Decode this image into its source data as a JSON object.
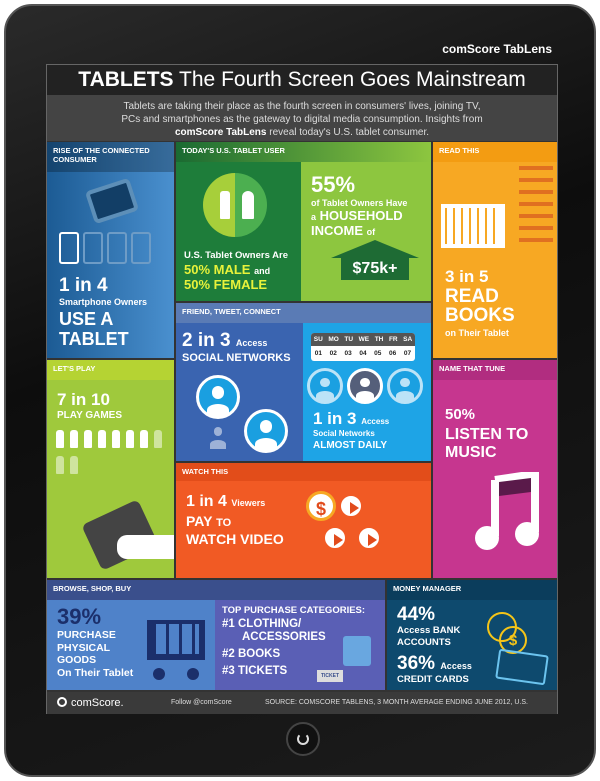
{
  "brand": "comScore TabLens",
  "header": {
    "title_bold": "TABLETS",
    "title_rest": "The Fourth Screen Goes Mainstream",
    "intro_1": "Tablets are taking their place as the fourth screen in consumers' lives, joining TV,",
    "intro_2": "PCs and smartphones as the gateway to digital media consumption. Insights from",
    "intro_brand": "comScore TabLens",
    "intro_3": "reveal today's U.S. tablet consumer."
  },
  "rise": {
    "header": "Rise of the Connected Consumer",
    "stat": "1 in 4",
    "line1": "Smartphone Owners",
    "line2": "USE A",
    "line3": "TABLET"
  },
  "user": {
    "header": "Today's U.S. Tablet User",
    "gender_lead": "U.S. Tablet Owners Are",
    "male": "50% MALE",
    "and": "and",
    "female": "50% FEMALE",
    "income_pct": "55%",
    "income_1": "of Tablet Owners Have",
    "income_a": "a",
    "income_2": "HOUSEHOLD",
    "income_3": "INCOME",
    "income_of": "of",
    "income_value": "$75k+"
  },
  "read": {
    "header": "Read This",
    "stat": "3 in 5",
    "line1": "READ",
    "line2": "BOOKS",
    "line3": "on Their Tablet"
  },
  "social": {
    "header": "Friend, Tweet, Connect",
    "stat1": "2 in 3",
    "access": "Access",
    "line1": "SOCIAL NETWORKS",
    "days": [
      "SU",
      "MO",
      "TU",
      "WE",
      "TH",
      "FR",
      "SA"
    ],
    "dates": [
      "01",
      "02",
      "03",
      "04",
      "05",
      "06",
      "07"
    ],
    "stat2": "1 in 3",
    "line2": "Social Networks",
    "line3": "ALMOST DAILY"
  },
  "play": {
    "header": "Let's Play",
    "stat": "7 in 10",
    "line": "PLAY GAMES",
    "fraction": 0.7
  },
  "music": {
    "header": "Name That Tune",
    "stat": "50%",
    "line1": "LISTEN TO",
    "line2": "MUSIC"
  },
  "watch": {
    "header": "Watch This",
    "stat": "1 in 4",
    "viewers": "Viewers",
    "line1": "PAY",
    "to": "TO",
    "line2": "WATCH VIDEO",
    "dollar": "$"
  },
  "shop": {
    "header": "Browse, Shop, Buy",
    "stat": "39%",
    "line1": "PURCHASE",
    "line2": "PHYSICAL",
    "line3": "GOODS",
    "line4": "On Their Tablet",
    "cats_title": "TOP PURCHASE CATEGORIES:",
    "cats": [
      "#1 CLOTHING/",
      "ACCESSORIES",
      "#2 BOOKS",
      "#3 TICKETS"
    ],
    "ticket": "TICKET"
  },
  "money": {
    "header": "Money Manager",
    "stat1": "44%",
    "line1": "Access BANK",
    "line2": "ACCOUNTS",
    "stat2": "36%",
    "access": "Access",
    "line3": "CREDIT CARDS",
    "dollar": "$"
  },
  "footer": {
    "logo": "comScore.",
    "follow": "Follow @comScore",
    "source": "SOURCE: COMSCORE TABLENS, 3 MONTH AVERAGE ENDING JUNE 2012, U.S."
  }
}
